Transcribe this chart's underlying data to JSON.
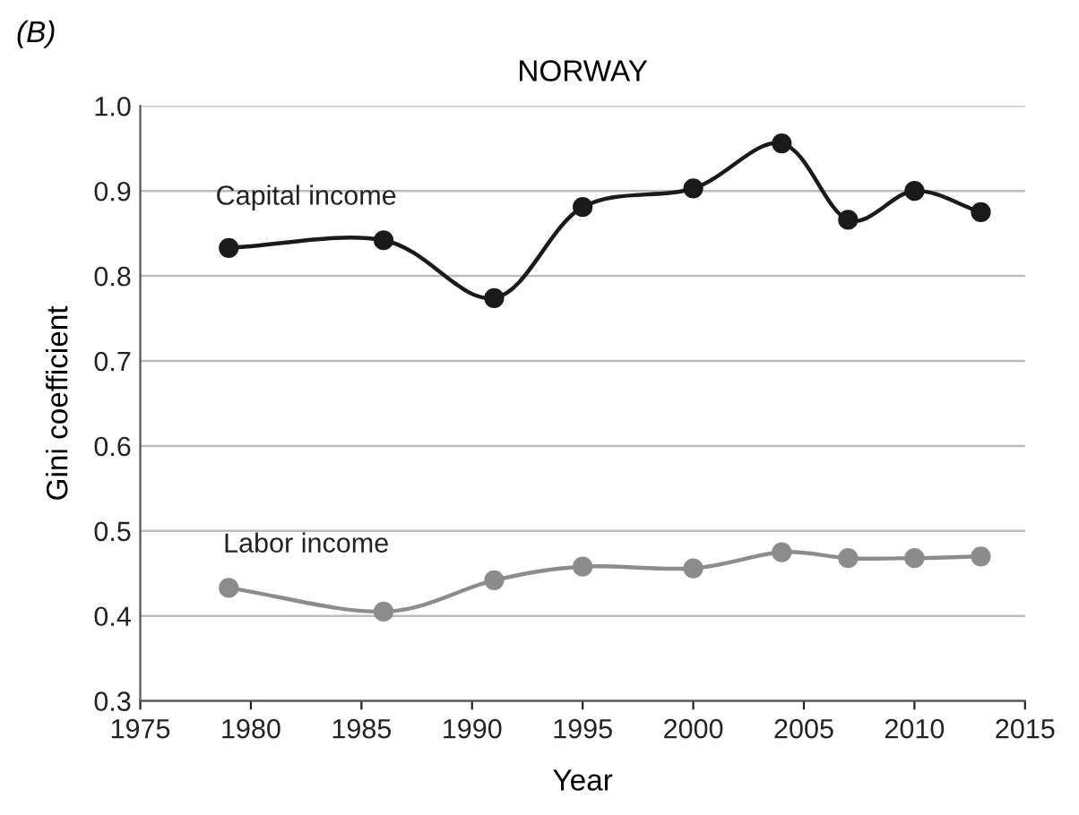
{
  "chart_data": {
    "type": "line",
    "title": "NORWAY",
    "xlabel": "Year",
    "ylabel": "Gini coefficient",
    "annotations": [
      "(B)"
    ],
    "x": [
      1979,
      1986,
      1991,
      1995,
      2000,
      2004,
      2007,
      2010,
      2013
    ],
    "series": [
      {
        "name": "Capital income",
        "color": "#1a1a1a",
        "values": [
          0.833,
          0.842,
          0.774,
          0.881,
          0.903,
          0.956,
          0.866,
          0.9,
          0.875
        ]
      },
      {
        "name": "Labor income",
        "color": "#8c8c8c",
        "values": [
          0.433,
          0.405,
          0.442,
          0.458,
          0.456,
          0.475,
          0.468,
          0.468,
          0.47
        ]
      }
    ],
    "xlim": [
      1975,
      2015
    ],
    "xticks": [
      1975,
      1980,
      1985,
      1990,
      1995,
      2000,
      2005,
      2010,
      2015
    ],
    "ylim": [
      0.3,
      1.0
    ],
    "yticks": [
      0.3,
      0.4,
      0.5,
      0.6,
      0.7,
      0.8,
      0.9,
      {
        "value": 1.0,
        "label": "1.0"
      }
    ],
    "grid": "y",
    "marker": "circle",
    "line_style": "solid",
    "legend": false
  }
}
